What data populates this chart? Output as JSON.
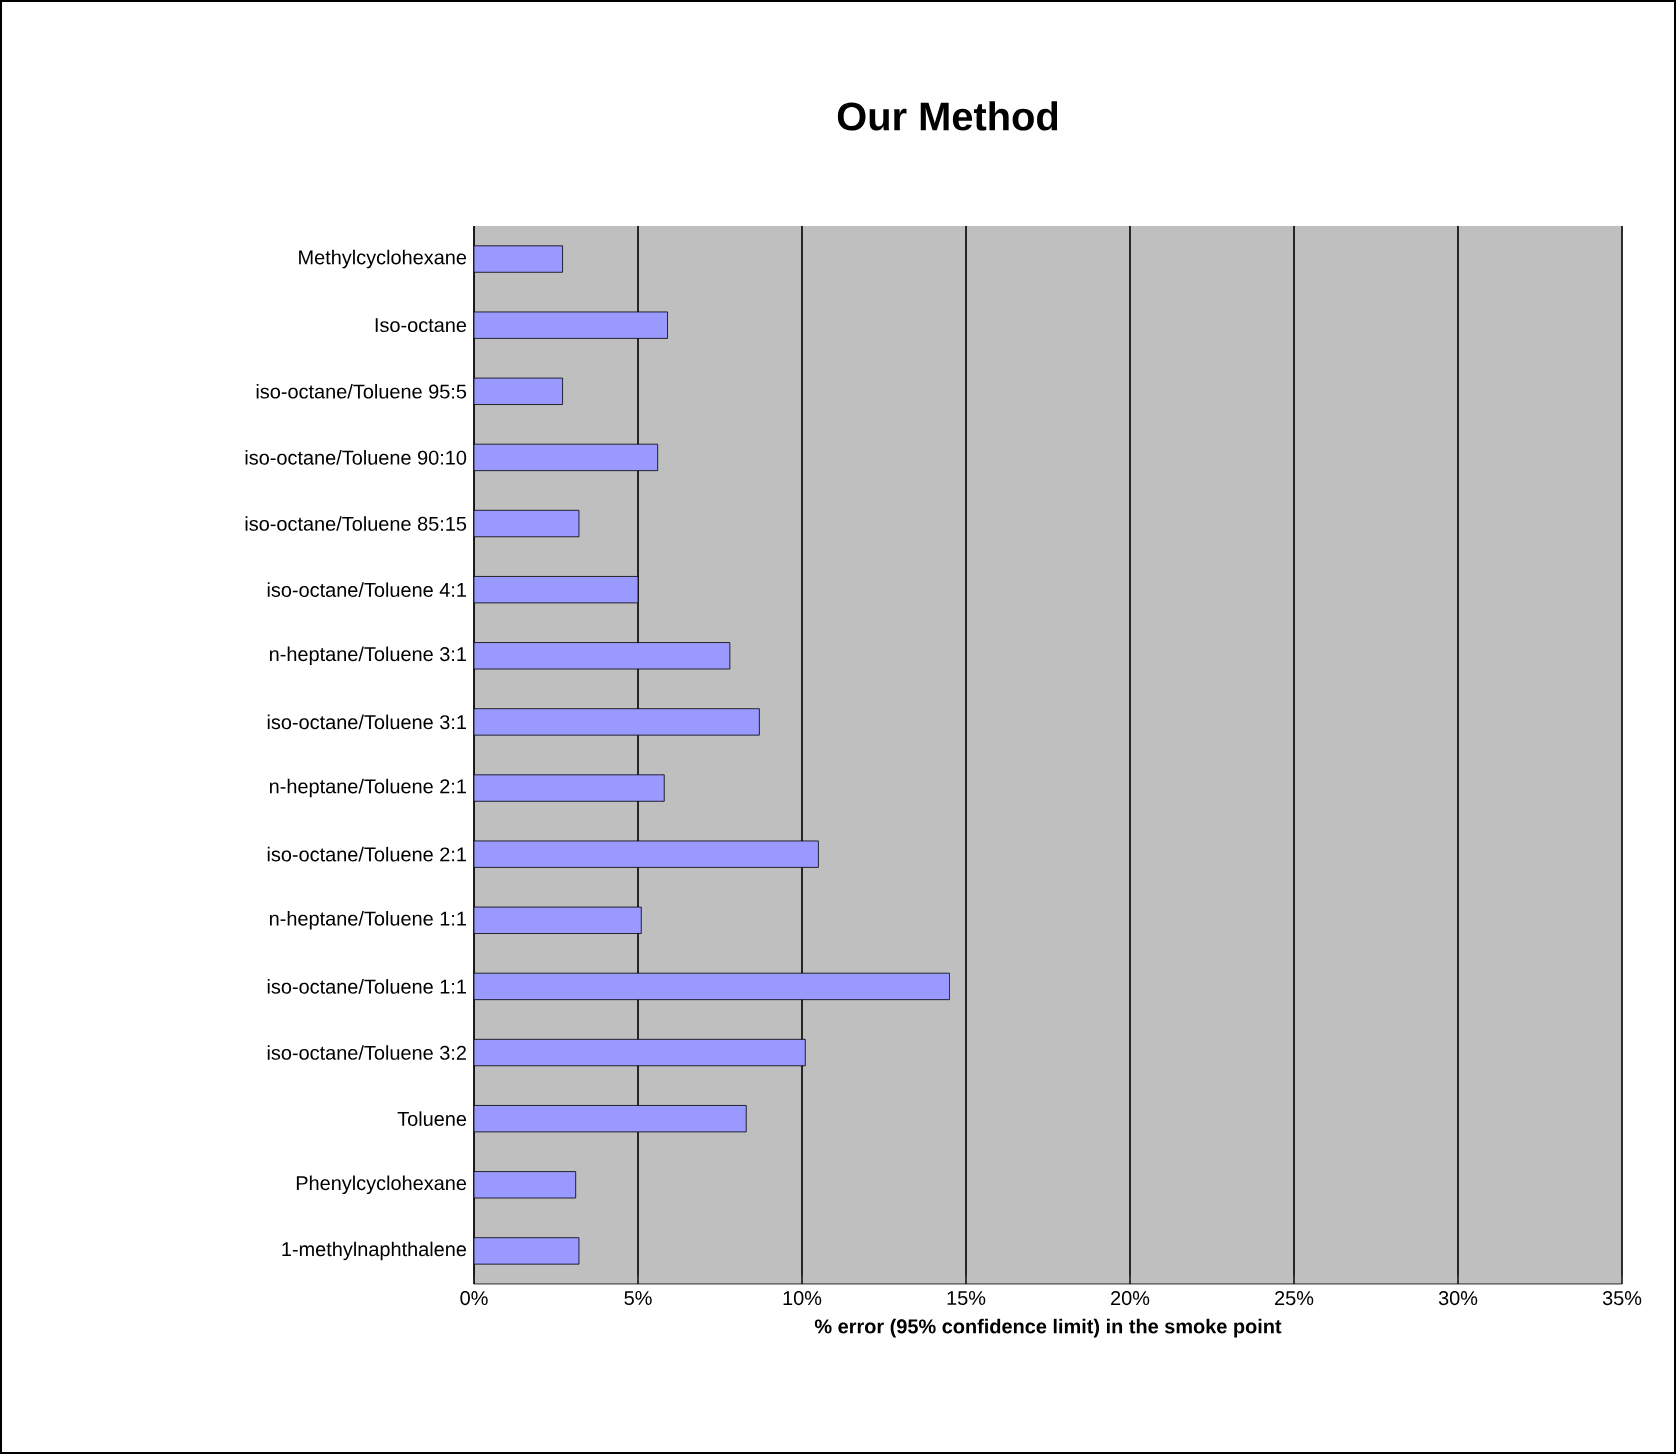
{
  "chart_data": {
    "type": "bar",
    "orientation": "horizontal",
    "title": "Our Method",
    "xlabel": "% error (95% confidence limit) in the smoke point",
    "categories": [
      "Methylcyclohexane",
      "Iso-octane",
      "iso-octane/Toluene 95:5",
      "iso-octane/Toluene 90:10",
      "iso-octane/Toluene 85:15",
      "iso-octane/Toluene 4:1",
      "n-heptane/Toluene 3:1",
      "iso-octane/Toluene 3:1",
      "n-heptane/Toluene 2:1",
      "iso-octane/Toluene 2:1",
      "n-heptane/Toluene 1:1",
      "iso-octane/Toluene 1:1",
      "iso-octane/Toluene 3:2",
      "Toluene",
      "Phenylcyclohexane",
      "1-methylnaphthalene"
    ],
    "values": [
      2.7,
      5.9,
      2.7,
      5.6,
      3.2,
      5.0,
      7.8,
      8.7,
      5.8,
      10.5,
      5.1,
      14.5,
      10.1,
      8.3,
      3.1,
      3.2
    ],
    "color": "#9999ff",
    "xlim": [
      0,
      35
    ],
    "xticks": [
      {
        "value": 0,
        "label": "0%"
      },
      {
        "value": 5,
        "label": "5%"
      },
      {
        "value": 10,
        "label": "10%"
      },
      {
        "value": 15,
        "label": "15%"
      },
      {
        "value": 20,
        "label": "20%"
      },
      {
        "value": 25,
        "label": "25%"
      },
      {
        "value": 30,
        "label": "30%"
      },
      {
        "value": 35,
        "label": "35%"
      }
    ],
    "grid": "x"
  }
}
